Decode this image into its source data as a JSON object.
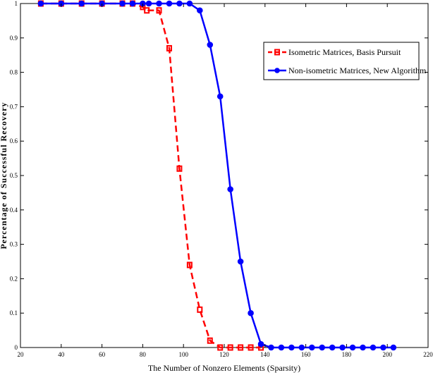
{
  "chart_data": {
    "type": "line",
    "title": "",
    "xlabel": "The Number of Nonzero Elements (Sparsity)",
    "ylabel": "Percentage of Successful Recovery",
    "xlim": [
      20,
      220
    ],
    "ylim": [
      0,
      1
    ],
    "xticks": [
      20,
      40,
      60,
      80,
      100,
      120,
      140,
      160,
      180,
      200,
      220
    ],
    "yticks": [
      0,
      0.1,
      0.2,
      0.3,
      0.4,
      0.5,
      0.6,
      0.7,
      0.8,
      0.9,
      1
    ],
    "grid": false,
    "legend_position": "top-right",
    "series": [
      {
        "name": "Isometric Matrices, Basis Pursuit",
        "color": "#ff0000",
        "line_style": "dashed",
        "marker": "square",
        "x": [
          30,
          40,
          50,
          60,
          70,
          75,
          80,
          82,
          88,
          93,
          98,
          103,
          108,
          113,
          118,
          123,
          128,
          133,
          138
        ],
        "y": [
          1.0,
          1.0,
          1.0,
          1.0,
          1.0,
          1.0,
          0.99,
          0.98,
          0.98,
          0.87,
          0.52,
          0.24,
          0.11,
          0.02,
          0.0,
          0.0,
          0.0,
          0.0,
          0.0
        ]
      },
      {
        "name": "Non-isometric Matrices, New Algorithm",
        "color": "#0000ff",
        "line_style": "solid",
        "marker": "circle",
        "x": [
          30,
          40,
          50,
          60,
          70,
          75,
          80,
          83,
          88,
          93,
          98,
          103,
          108,
          113,
          118,
          123,
          128,
          133,
          138,
          143,
          148,
          153,
          158,
          163,
          168,
          173,
          178,
          183,
          188,
          193,
          198,
          203
        ],
        "y": [
          1.0,
          1.0,
          1.0,
          1.0,
          1.0,
          1.0,
          1.0,
          1.0,
          1.0,
          1.0,
          1.0,
          1.0,
          0.98,
          0.88,
          0.73,
          0.46,
          0.25,
          0.1,
          0.01,
          0.0,
          0.0,
          0.0,
          0.0,
          0.0,
          0.0,
          0.0,
          0.0,
          0.0,
          0.0,
          0.0,
          0.0,
          0.0
        ]
      }
    ]
  }
}
